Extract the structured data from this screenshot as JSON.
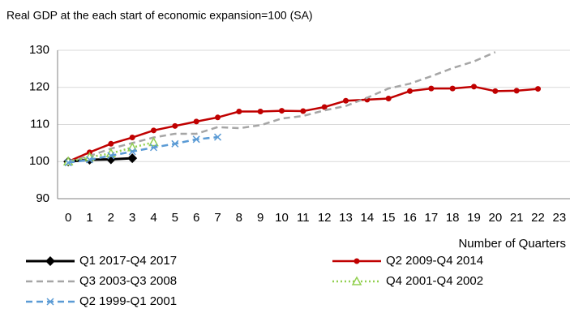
{
  "chart_data": {
    "type": "line",
    "subtitle": "Real GDP at the each start of economic expansion=100 (SA)",
    "x_label": "Number of Quarters",
    "categories": [
      0,
      1,
      2,
      3,
      4,
      5,
      6,
      7,
      8,
      9,
      10,
      11,
      12,
      13,
      14,
      15,
      16,
      17,
      18,
      19,
      20,
      21,
      22,
      23
    ],
    "ylim": [
      90,
      130
    ],
    "yticks": [
      90,
      100,
      110,
      120,
      130
    ],
    "grid": true,
    "series": [
      {
        "name": "Q1 2017-Q4 2017",
        "color": "#000000",
        "marker": "diamond",
        "dash": "solid",
        "values": [
          100,
          100.5,
          100.6,
          100.9,
          null,
          null,
          null,
          null,
          null,
          null,
          null,
          null,
          null,
          null,
          null,
          null,
          null,
          null,
          null,
          null,
          null,
          null,
          null,
          null
        ]
      },
      {
        "name": "Q2 2009-Q4 2014",
        "color": "#c00000",
        "marker": "circle",
        "dash": "solid",
        "values": [
          100,
          102.5,
          104.8,
          106.5,
          108.4,
          109.6,
          110.8,
          111.9,
          113.5,
          113.5,
          113.7,
          113.6,
          114.7,
          116.4,
          116.7,
          117,
          119,
          119.7,
          119.7,
          120.2,
          119,
          119.1,
          119.6,
          null
        ]
      },
      {
        "name": "Q3 2003-Q3 2008",
        "color": "#a6a6a6",
        "marker": "none",
        "dash": "dashed",
        "values": [
          100,
          101.5,
          103.5,
          105,
          106.5,
          107.5,
          107.5,
          109.3,
          109,
          109.8,
          111.6,
          112.3,
          113.8,
          115,
          117.2,
          119.7,
          121,
          123,
          125.2,
          127,
          129.5,
          null,
          null,
          null
        ]
      },
      {
        "name": "Q4 2001-Q4 2002",
        "color": "#92d050",
        "marker": "triangle",
        "dash": "dotted",
        "values": [
          100,
          101.2,
          102.2,
          103.8,
          105.2,
          null,
          null,
          null,
          null,
          null,
          null,
          null,
          null,
          null,
          null,
          null,
          null,
          null,
          null,
          null,
          null,
          null,
          null,
          null
        ]
      },
      {
        "name": "Q2 1999-Q1 2001",
        "color": "#5b9bd5",
        "marker": "x",
        "dash": "dashed",
        "values": [
          99.7,
          100.5,
          101.6,
          102.7,
          103.8,
          104.8,
          106,
          106.6,
          null,
          null,
          null,
          null,
          null,
          null,
          null,
          null,
          null,
          null,
          null,
          null,
          null,
          null,
          null,
          null
        ]
      }
    ]
  }
}
